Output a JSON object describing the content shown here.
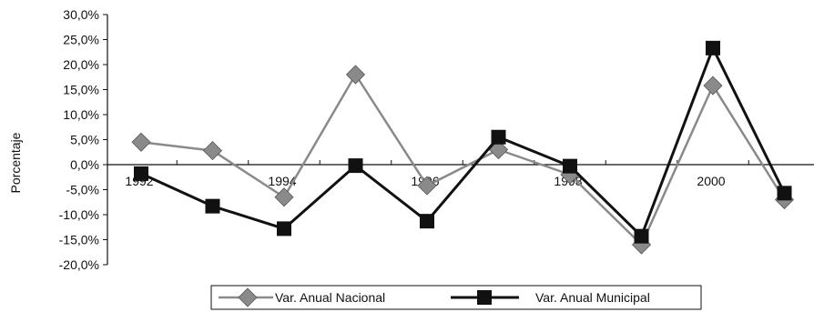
{
  "chart_data": {
    "type": "line",
    "title": "",
    "xlabel": "",
    "ylabel": "Porcentaje",
    "ylim": [
      -20,
      30
    ],
    "y_tick_step": 5,
    "y_tick_labels": [
      "30,0%",
      "25,0%",
      "20,0%",
      "15,0%",
      "10,0%",
      "5,0%",
      "0,0%",
      "-5,0%",
      "-10,0%",
      "-15,0%",
      "-20,0%"
    ],
    "x": [
      1992,
      1993,
      1994,
      1995,
      1996,
      1997,
      1998,
      1999,
      2000,
      2001
    ],
    "x_tick_labels": [
      "1992",
      "1994",
      "1996",
      "1998",
      "2000"
    ],
    "x_tick_label_years": [
      1992,
      1994,
      1996,
      1998,
      2000
    ],
    "grid": false,
    "legend_position": "bottom",
    "series": [
      {
        "name": "Var. Anual Nacional",
        "values": [
          4.5,
          2.8,
          -6.5,
          18.0,
          -4.2,
          3.0,
          -2.0,
          -16.0,
          15.8,
          -7.0
        ],
        "color": "#8a8a8a",
        "marker": "diamond"
      },
      {
        "name": "Var. Anual Municipal",
        "values": [
          -1.8,
          -8.3,
          -12.8,
          -0.2,
          -11.3,
          5.5,
          -0.3,
          -14.3,
          23.3,
          -5.7
        ],
        "color": "#111111",
        "marker": "square"
      }
    ]
  }
}
